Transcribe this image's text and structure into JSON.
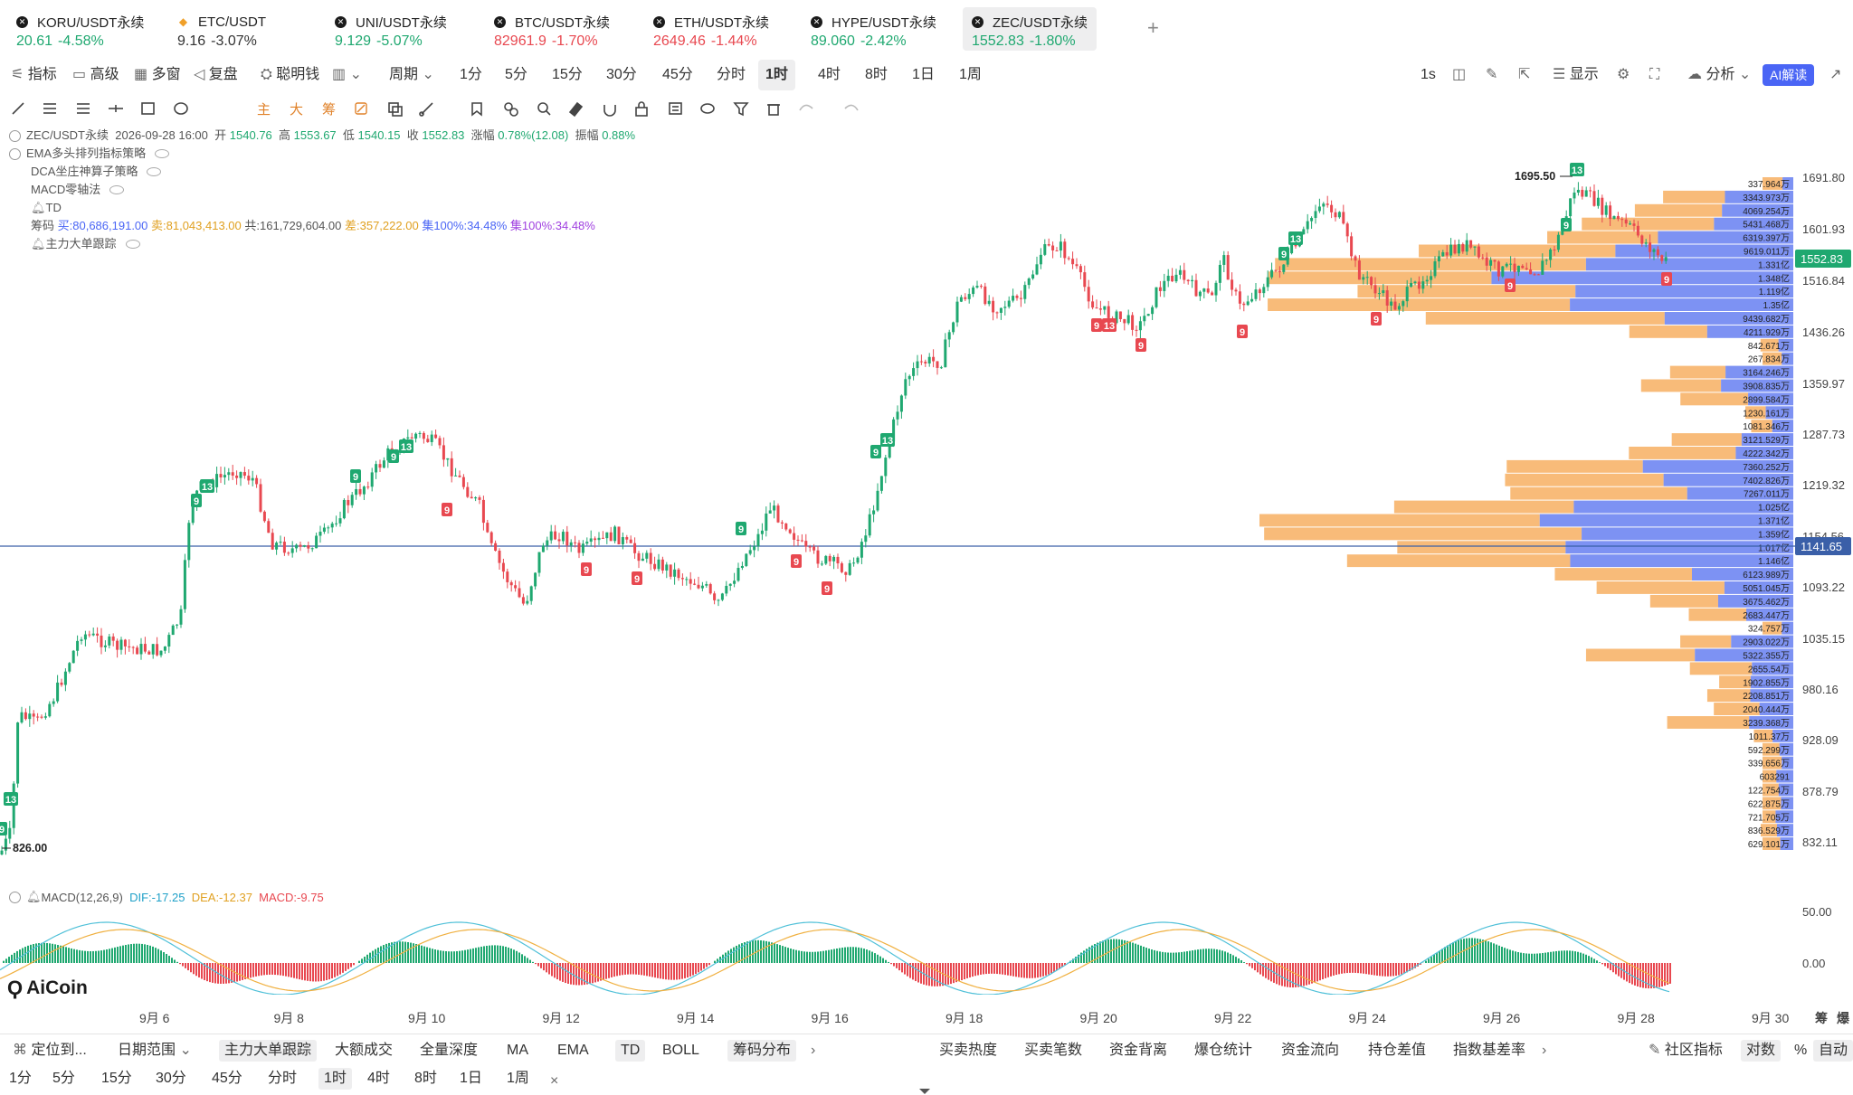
{
  "tabs": [
    {
      "name": "KORU/USDT永续",
      "price": "20.61",
      "change": "-4.58%",
      "dir": "up",
      "icon": "x-circle-icon"
    },
    {
      "name": "ETC/USDT",
      "price": "9.16",
      "change": "-3.07%",
      "dir": "plain",
      "icon": "etc-diamond-icon"
    },
    {
      "name": "UNI/USDT永续",
      "price": "9.129",
      "change": "-5.07%",
      "dir": "up",
      "icon": "x-circle-icon"
    },
    {
      "name": "BTC/USDT永续",
      "price": "82961.9",
      "change": "-1.70%",
      "dir": "down",
      "icon": "x-circle-icon"
    },
    {
      "name": "ETH/USDT永续",
      "price": "2649.46",
      "change": "-1.44%",
      "dir": "down",
      "icon": "x-circle-icon"
    },
    {
      "name": "HYPE/USDT永续",
      "price": "89.060",
      "change": "-2.42%",
      "dir": "up",
      "icon": "x-circle-icon"
    },
    {
      "name": "ZEC/USDT永续",
      "price": "1552.83",
      "change": "-1.80%",
      "dir": "up",
      "icon": "x-circle-icon",
      "active": true
    }
  ],
  "toolbar": {
    "indicator": "指标",
    "advanced": "高级",
    "multi_window": "多窗",
    "replay": "复盘",
    "smart_money": "聪明钱",
    "period": "周期",
    "intervals": [
      "1分",
      "5分",
      "15分",
      "30分",
      "45分",
      "分时",
      "1时",
      "4时",
      "8时",
      "1日",
      "1周"
    ],
    "selected_interval": "1时",
    "tick": "1s",
    "display": "显示",
    "analysis": "分析",
    "ai_read": "AI解读"
  },
  "drawtools": {
    "main": "主",
    "big": "大",
    "chips": "筹"
  },
  "info": {
    "symbol": "ZEC/USDT永续",
    "datetime": "2026-09-28 16:00",
    "open_label": "开",
    "open": "1540.76",
    "high_label": "高",
    "high": "1553.67",
    "low_label": "低",
    "low": "1540.15",
    "close_label": "收",
    "close": "1552.83",
    "change_label": "涨幅",
    "change": "0.78%(12.08)",
    "amp_label": "振幅",
    "amp": "0.88%",
    "strategies": [
      "EMA多头排列指标策略",
      "DCA坐庄神算子策略",
      "MACD零轴法",
      "TD"
    ],
    "chips_label": "筹码",
    "chips_buy": "买:80,686,191.00",
    "chips_sell": "卖:81,043,413.00",
    "chips_total": "共:161,729,604.00",
    "chips_diff": "差:357,222.00",
    "chips_c1": "集100%:34.48%",
    "chips_c2": "集100%:34.48%",
    "big_order": "主力大单跟踪"
  },
  "price_axis": [
    "1691.80",
    "1601.93",
    "1516.84",
    "1436.26",
    "1359.97",
    "1287.73",
    "1219.32",
    "1154.56",
    "1093.22",
    "1035.15",
    "980.16",
    "928.09",
    "878.79",
    "832.11"
  ],
  "current_price": "1552.83",
  "hline_price": "1141.65",
  "annotations": {
    "high_marker": "1695.50",
    "low_marker": "826.00"
  },
  "volume_profile": [
    "337.964万",
    "3343.973万",
    "4069.254万",
    "5431.468万",
    "6319.397万",
    "9619.011万",
    "1.331亿",
    "1.348亿",
    "1.119亿",
    "1.35亿",
    "9439.682万",
    "4211.929万",
    "842.671万",
    "267.834万",
    "3164.246万",
    "3908.835万",
    "2899.584万",
    "1230.161万",
    "1081.346万",
    "3121.529万",
    "4222.342万",
    "7360.252万",
    "7402.826万",
    "7267.011万",
    "1.025亿",
    "1.371亿",
    "1.359亿",
    "1.017亿",
    "1.146亿",
    "6123.989万",
    "5051.045万",
    "3675.462万",
    "2683.447万",
    "324.757万",
    "2903.022万",
    "5322.355万",
    "2655.54万",
    "1902.855万",
    "2208.851万",
    "2040.444万",
    "3239.368万",
    "1011.37万",
    "592.299万",
    "339.656万",
    "603291",
    "122.754万",
    "622.875万",
    "721.705万",
    "836.529万",
    "629.101万"
  ],
  "macd": {
    "label": "MACD(12,26,9)",
    "dif": "DIF:-17.25",
    "dea": "DEA:-12.37",
    "macd": "MACD:-9.75",
    "axis": [
      "50.00",
      "0.00"
    ]
  },
  "logo": "AiCoin",
  "xaxis": [
    "9月 6",
    "9月 8",
    "9月 10",
    "9月 12",
    "9月 14",
    "9月 16",
    "9月 18",
    "9月 20",
    "9月 22",
    "9月 24",
    "9月 26",
    "9月 28",
    "9月 30"
  ],
  "xaxis_right": [
    "筹",
    "爆"
  ],
  "bottom_bar": {
    "locate": "定位到...",
    "date_range": "日期范围",
    "tabs": [
      "主力大单跟踪",
      "大额成交",
      "全量深度",
      "MA",
      "EMA",
      "TD",
      "BOLL",
      "筹码分布"
    ],
    "right_tabs": [
      "买卖热度",
      "买卖笔数",
      "资金背离",
      "爆仓统计",
      "资金流向",
      "持仓差值",
      "指数基差率"
    ],
    "community": "社区指标",
    "log": "对数",
    "percent": "%",
    "auto": "自动"
  },
  "bottom_intervals": [
    "1分",
    "5分",
    "15分",
    "30分",
    "45分",
    "分时",
    "1时",
    "4时",
    "8时",
    "1日",
    "1周"
  ],
  "bottom_selected": "1时",
  "colors": {
    "up": "#1fa870",
    "down": "#e84850",
    "orange": "#f7b46a",
    "blue": "#6f86f2",
    "current": "#1fa870",
    "hline": "#3a5fa8"
  }
}
